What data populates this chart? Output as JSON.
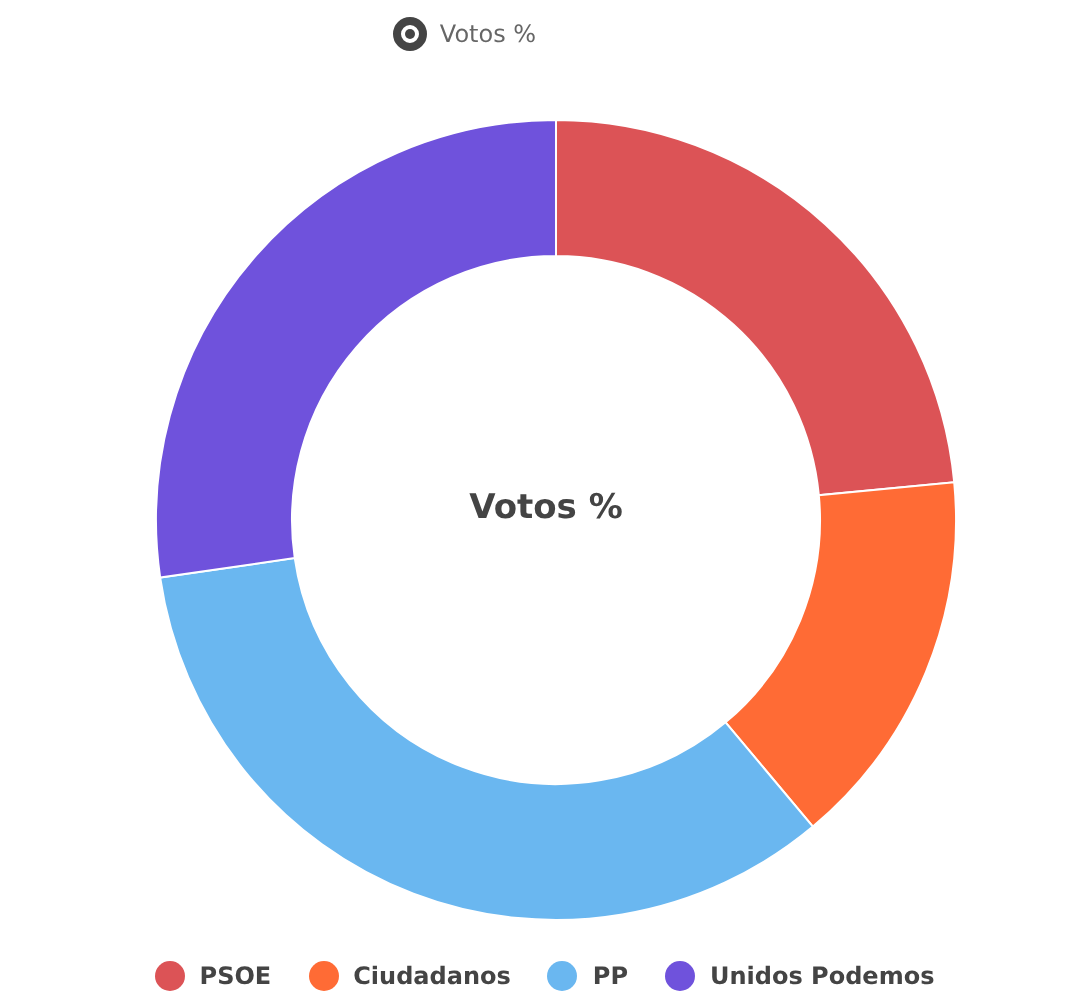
{
  "chart_data": {
    "type": "donut",
    "title": "Votos %",
    "categories": [
      "PSOE",
      "Ciudadanos",
      "PP",
      "Unidos Podemos"
    ],
    "series": [
      {
        "name": "Votos %",
        "values": [
          23.5,
          15.4,
          33.8,
          27.3
        ]
      }
    ],
    "colors": [
      "#dc5356",
      "#ff6b35",
      "#6ab7f0",
      "#6f52dc"
    ],
    "legend": "bottom"
  }
}
